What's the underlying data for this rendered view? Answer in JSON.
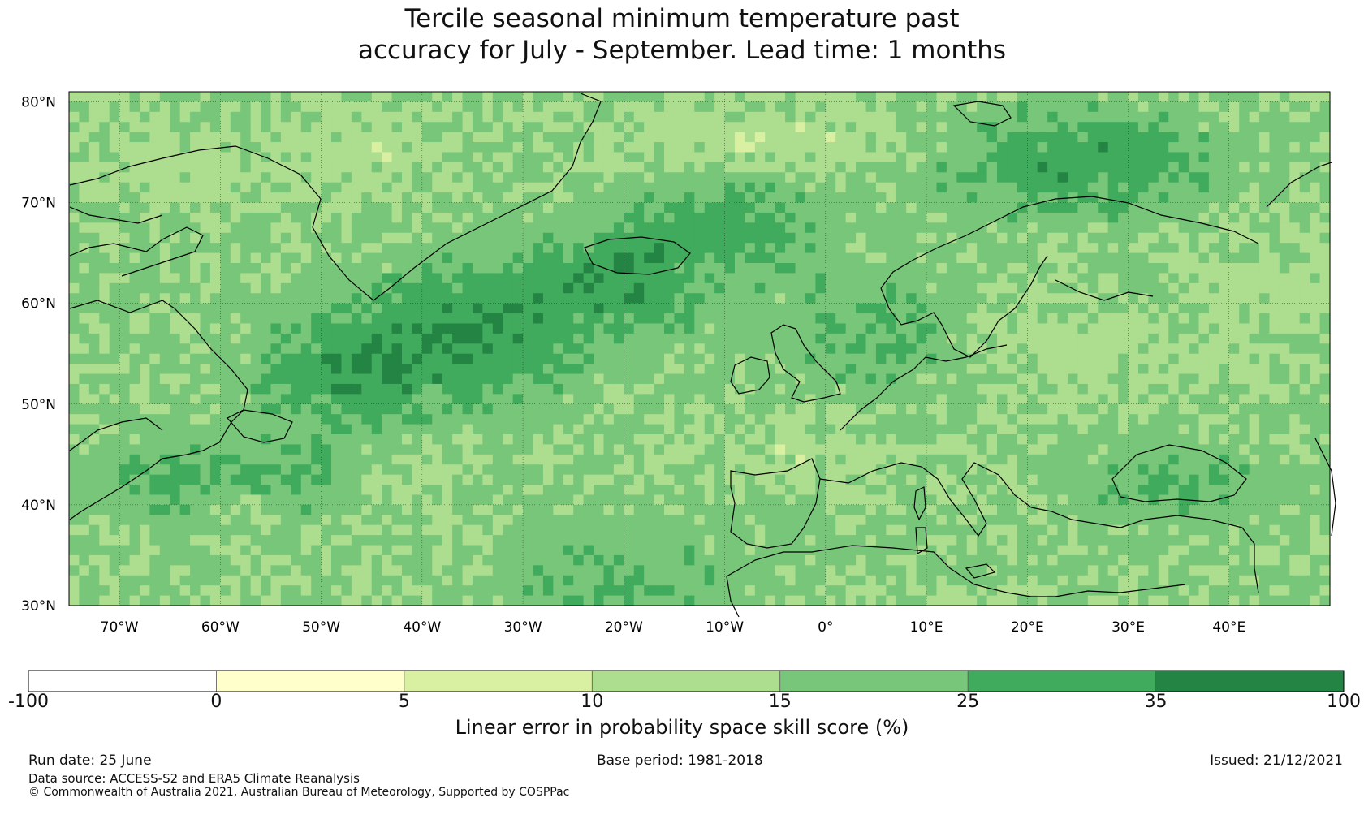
{
  "title": {
    "line1": "Tercile seasonal minimum temperature past",
    "line2": "accuracy for July - September. Lead time: 1 months"
  },
  "map": {
    "lat_labels": [
      "80°N",
      "70°N",
      "60°N",
      "50°N",
      "40°N",
      "30°N"
    ],
    "lon_labels": [
      "70°W",
      "60°W",
      "50°W",
      "40°W",
      "30°W",
      "20°W",
      "10°W",
      "0°",
      "10°E",
      "20°E",
      "30°E",
      "40°E"
    ],
    "lat_range": [
      30,
      81
    ],
    "lon_range": [
      -75,
      50
    ]
  },
  "colorbar": {
    "title": "Linear error in probability space skill score (%)",
    "boundaries": [
      "-100",
      "0",
      "5",
      "10",
      "15",
      "25",
      "35",
      "100"
    ],
    "colors": [
      "#ffffff",
      "#ffffcc",
      "#d9f0a3",
      "#addd8e",
      "#78c679",
      "#41ab5d",
      "#238443"
    ]
  },
  "footer": {
    "run_date": "Run date: 25 June",
    "base_period": "Base period: 1981-2018",
    "issued": "Issued: 21/12/2021",
    "data_source": "Data source: ACCESS-S2 and ERA5 Climate Reanalysis",
    "copyright": "© Commonwealth of Australia 2021, Australian Bureau of Meteorology, Supported by COSPPac"
  }
}
